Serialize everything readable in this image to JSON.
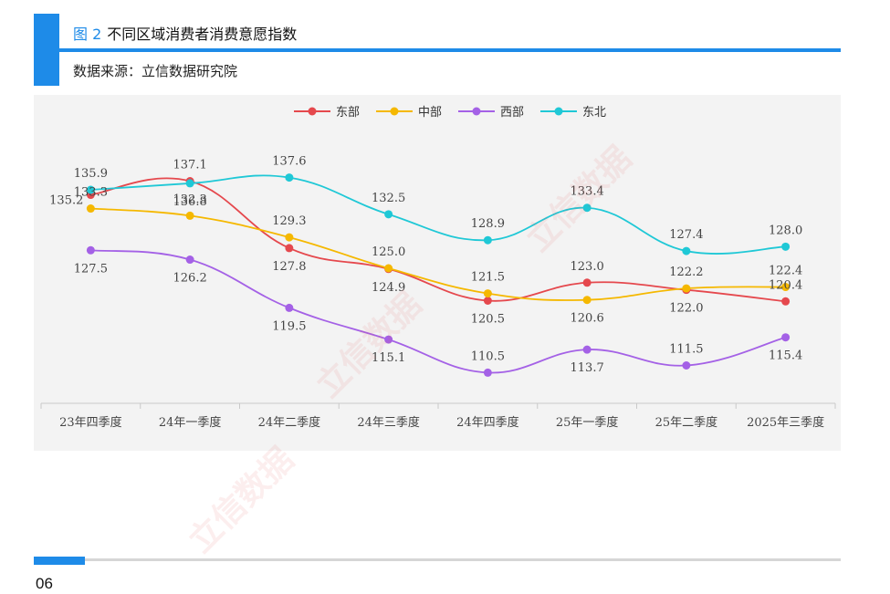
{
  "figure": {
    "number": "图 2",
    "title": "不同区域消费者消费意愿指数",
    "source": "数据来源：立信数据研究院"
  },
  "footer": {
    "page_number": "06"
  },
  "watermark_text": "立信数据",
  "chart_data": {
    "type": "line",
    "categories": [
      "23年四季度",
      "24年一季度",
      "24年二季度",
      "24年三季度",
      "24年四季度",
      "25年一季度",
      "25年二季度",
      "2025年三季度"
    ],
    "series": [
      {
        "name": "东部",
        "color": "#e5484d",
        "values": [
          135.2,
          137.1,
          127.8,
          124.9,
          120.5,
          123.0,
          122.0,
          120.4
        ]
      },
      {
        "name": "中部",
        "color": "#f5b800",
        "values": [
          133.3,
          132.3,
          129.3,
          125.0,
          121.5,
          120.6,
          122.2,
          122.4
        ]
      },
      {
        "name": "西部",
        "color": "#a461e6",
        "values": [
          127.5,
          126.2,
          119.5,
          115.1,
          110.5,
          113.7,
          111.5,
          115.4
        ]
      },
      {
        "name": "东北",
        "color": "#1fc8d6",
        "values": [
          135.9,
          136.8,
          137.6,
          132.5,
          128.9,
          133.4,
          127.4,
          128.0
        ]
      }
    ],
    "ylim": [
      107,
      143
    ],
    "legend_position": "top-center",
    "grid": false
  }
}
